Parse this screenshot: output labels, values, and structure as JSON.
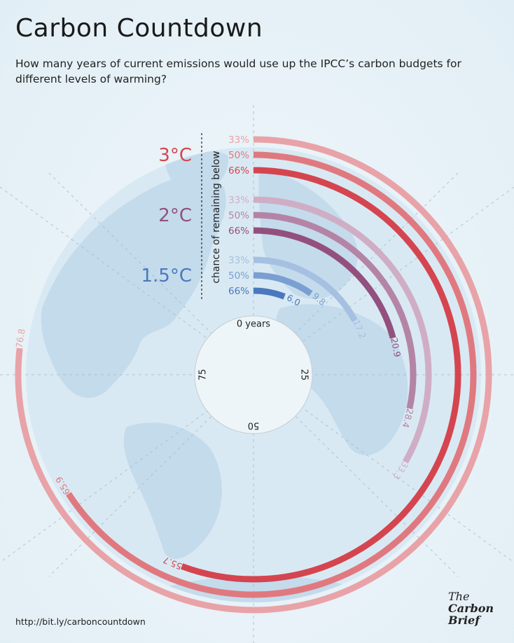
{
  "title": "Carbon Countdown",
  "subtitle": "How many years of current emissions would use up the IPCC’s carbon budgets for different levels of warming?",
  "source": "http://bit.ly/carboncountdown",
  "logo": {
    "line1": "The",
    "line2": "Carbon",
    "line3": "Brief"
  },
  "colors": {
    "background": "#e9f3f8",
    "land": "#c5dced",
    "ocean": "#d9e9f3",
    "warm3_66": "#d5454f",
    "warm3_50": "#e0797f",
    "warm3_33": "#e8a3a8",
    "warm2_66": "#93507e",
    "warm2_50": "#b484a6",
    "warm2_33": "#cfaec5",
    "warm15_66": "#4a78bd",
    "warm15_50": "#7a9fd1",
    "warm15_33": "#a6c0e2"
  },
  "chart_data": {
    "type": "radial-bar",
    "title": "Carbon Countdown",
    "value_axis_label": "years",
    "dial_ticks": [
      {
        "value": 0,
        "label": "0 years"
      },
      {
        "value": 25,
        "label": "25"
      },
      {
        "value": 50,
        "label": "50"
      },
      {
        "value": 75,
        "label": "75"
      }
    ],
    "dial_max": 100,
    "probability_axis_label": "chance of remaining below",
    "groups": [
      {
        "name": "3°C",
        "bars": [
          {
            "chance": "33%",
            "years": 76.8,
            "label": "76.8"
          },
          {
            "chance": "50%",
            "years": 65.9,
            "label": "65.9"
          },
          {
            "chance": "66%",
            "years": 55.7,
            "label": "55.7"
          }
        ]
      },
      {
        "name": "2°C",
        "bars": [
          {
            "chance": "33%",
            "years": 33.3,
            "label": "33.3"
          },
          {
            "chance": "50%",
            "years": 28.4,
            "label": "28.4"
          },
          {
            "chance": "66%",
            "years": 20.9,
            "label": "20.9"
          }
        ]
      },
      {
        "name": "1.5°C",
        "bars": [
          {
            "chance": "33%",
            "years": 17.2,
            "label": "17.2"
          },
          {
            "chance": "50%",
            "years": 9.8,
            "label": "9.8"
          },
          {
            "chance": "66%",
            "years": 6.0,
            "label": "6.0"
          }
        ]
      }
    ]
  }
}
